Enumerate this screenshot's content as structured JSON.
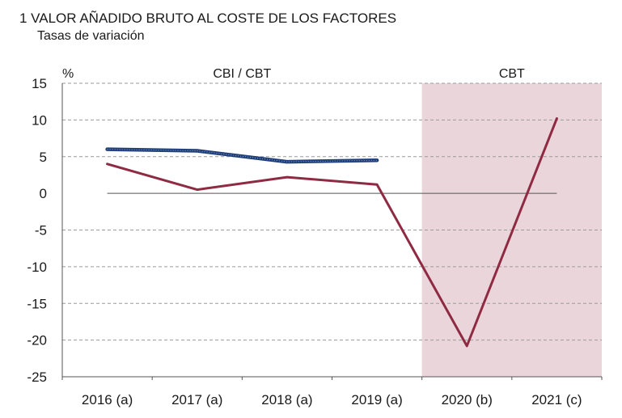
{
  "title": "1  VALOR AÑADIDO BRUTO AL COSTE DE LOS FACTORES",
  "subtitle": "Tasas de variación",
  "chart_data": {
    "type": "line",
    "categories": [
      "2016 (a)",
      "2017 (a)",
      "2018 (a)",
      "2019 (a)",
      "2020 (b)",
      "2021 (c)"
    ],
    "ylabel": "%",
    "ylim": [
      -25,
      15
    ],
    "yticks": [
      15,
      10,
      5,
      0,
      -5,
      -10,
      -15,
      -20,
      -25
    ],
    "grid": true,
    "region_labels": [
      "CBI / CBT",
      "CBT"
    ],
    "shaded_region": {
      "label": "CBT",
      "categories": [
        "2020 (b)",
        "2021 (c)"
      ],
      "color": "#ead6da"
    },
    "series": [
      {
        "color": "#1f3f7a",
        "style": "dotted-thick",
        "values": [
          6.0,
          5.8,
          4.3,
          4.5,
          null,
          null
        ]
      },
      {
        "color": "#8f2a43",
        "style": "solid",
        "values": [
          4.0,
          0.5,
          2.2,
          1.2,
          -20.8,
          10.2
        ]
      }
    ]
  }
}
